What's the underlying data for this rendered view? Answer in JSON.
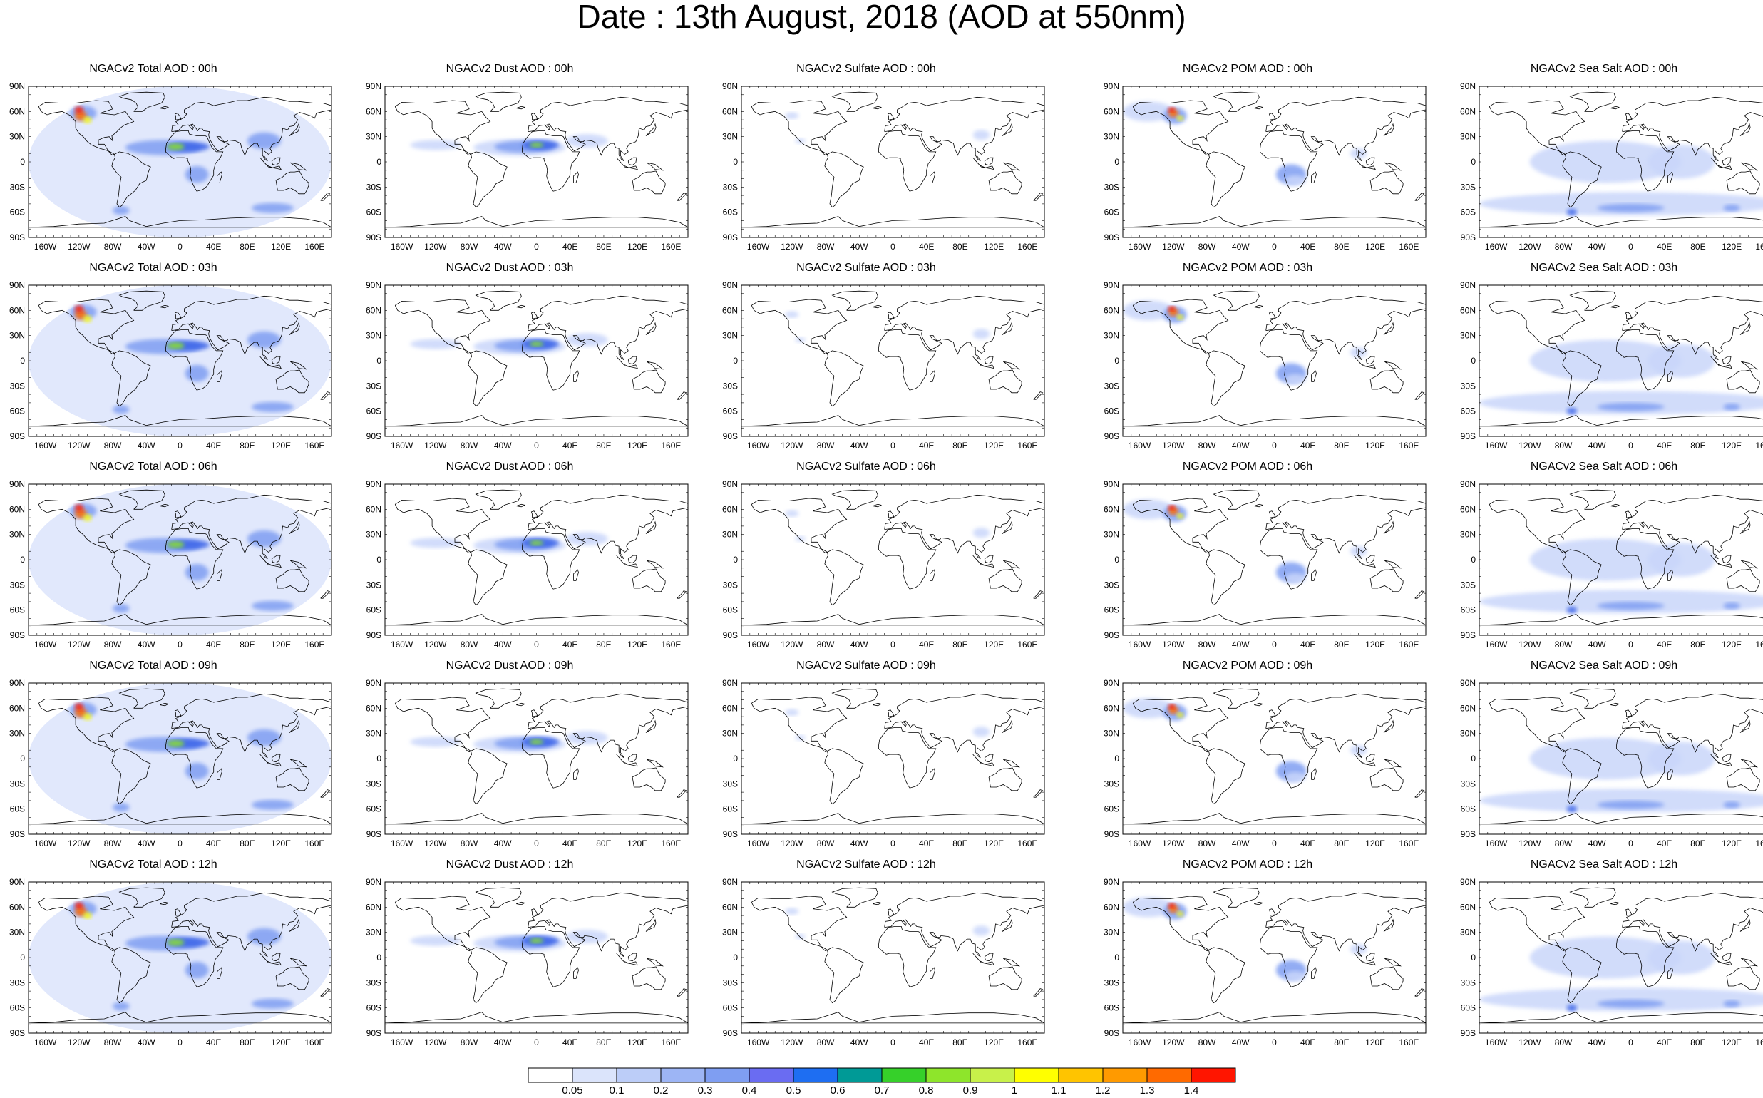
{
  "title": "Date : 13th August, 2018 (AOD at 550nm)",
  "lat_ticks": [
    "90N",
    "60N",
    "30N",
    "0",
    "30S",
    "60S",
    "90S"
  ],
  "lon_ticks": [
    "160W",
    "120W",
    "80W",
    "40W",
    "0",
    "40E",
    "80E",
    "120E",
    "160E"
  ],
  "panels": [
    [
      "NGACv2 Total AOD : 00h",
      "NGACv2 Dust AOD : 00h",
      "NGACv2 Sulfate AOD : 00h",
      "NGACv2 POM AOD : 00h",
      "NGACv2 Sea Salt AOD : 00h"
    ],
    [
      "NGACv2 Total AOD : 03h",
      "NGACv2 Dust AOD : 03h",
      "NGACv2 Sulfate AOD : 03h",
      "NGACv2 POM AOD : 03h",
      "NGACv2 Sea Salt AOD : 03h"
    ],
    [
      "NGACv2 Total AOD : 06h",
      "NGACv2 Dust AOD : 06h",
      "NGACv2 Sulfate AOD : 06h",
      "NGACv2 POM AOD : 06h",
      "NGACv2 Sea Salt AOD : 06h"
    ],
    [
      "NGACv2 Total AOD : 09h",
      "NGACv2 Dust AOD : 09h",
      "NGACv2 Sulfate AOD : 09h",
      "NGACv2 POM AOD : 09h",
      "NGACv2 Sea Salt  AOD : 09h"
    ],
    [
      "NGACv2 Total AOD : 12h",
      "NGACv2 Dust AOD : 12h",
      "NGACv2 Sulfate AOD : 12h",
      "NGACv2 POM  AOD : 12h",
      "NGACv2 Sea Salt  AOD : 12h"
    ]
  ],
  "colorbar": {
    "labels": [
      "0.05",
      "0.1",
      "0.2",
      "0.3",
      "0.4",
      "0.5",
      "0.6",
      "0.7",
      "0.8",
      "0.9",
      "1",
      "1.1",
      "1.2",
      "1.3",
      "1.4"
    ],
    "colors": [
      "#ffffff",
      "#dbe4fb",
      "#bccdf8",
      "#9db5f5",
      "#7f9ef2",
      "#6a6cf2",
      "#1e6ef2",
      "#009a96",
      "#36d02a",
      "#8ee52b",
      "#c8f14a",
      "#ffff00",
      "#ffc400",
      "#ff9a00",
      "#ff6a00",
      "#ff1500"
    ]
  },
  "colors": {
    "land_outline": "#000000",
    "low_aod": "#c9d6fa",
    "mid_aod": "#7f9ef2",
    "high_aod": "#3b63e8"
  }
}
